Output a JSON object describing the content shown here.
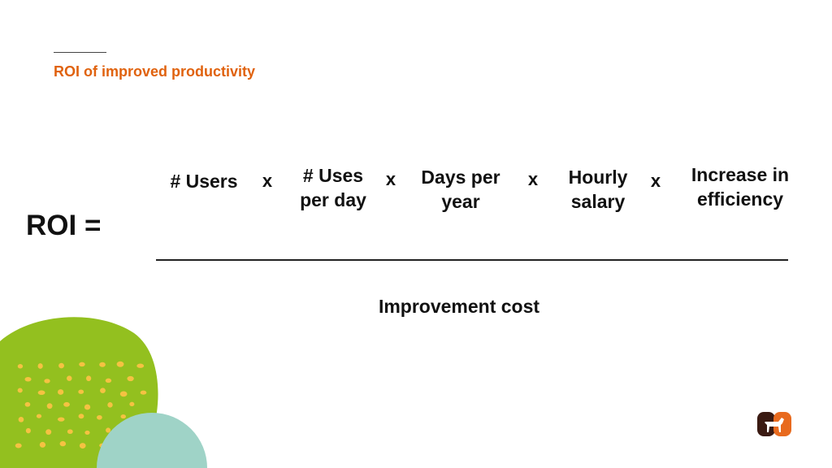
{
  "slide": {
    "title": "ROI of improved productivity",
    "lhs": "ROI =",
    "numerator": [
      {
        "lines": [
          "# Users"
        ]
      },
      {
        "lines": [
          "# Uses",
          "per day"
        ]
      },
      {
        "lines": [
          "Days per",
          "year"
        ]
      },
      {
        "lines": [
          "Hourly",
          "salary"
        ]
      },
      {
        "lines": [
          "Increase in",
          "efficiency"
        ]
      }
    ],
    "operator": "x",
    "denominator": "Improvement cost"
  },
  "colors": {
    "accent": "#e0620e",
    "green_blob": "#93c01f",
    "teal_blob": "#9fd3c7",
    "dots": "#f5c242",
    "logo_dark": "#3a1a12",
    "logo_orange": "#e86a1e"
  },
  "logo": {
    "icon": "dog-logo-icon"
  }
}
